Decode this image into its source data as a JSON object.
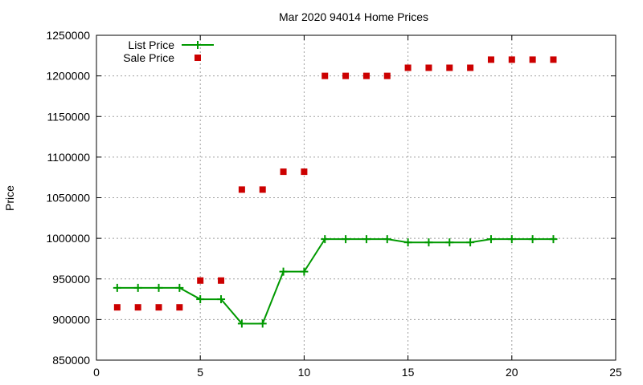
{
  "chart_data": {
    "type": "line",
    "title": "Mar 2020 94014 Home Prices",
    "xlabel": "",
    "ylabel": "Price",
    "xlim": [
      0,
      25
    ],
    "ylim": [
      850000,
      1250000
    ],
    "xticks": [
      0,
      5,
      10,
      15,
      20,
      25
    ],
    "yticks": [
      850000,
      900000,
      950000,
      1000000,
      1050000,
      1100000,
      1150000,
      1200000,
      1250000
    ],
    "grid": true,
    "legend_position": "top-left",
    "series": [
      {
        "name": "List Price",
        "style": "line-points",
        "color": "#009900",
        "x": [
          1,
          2,
          3,
          4,
          5,
          6,
          7,
          8,
          9,
          10,
          11,
          12,
          13,
          14,
          15,
          16,
          17,
          18,
          19,
          20,
          21,
          22
        ],
        "y": [
          939000,
          939000,
          939000,
          939000,
          925000,
          925000,
          895000,
          895000,
          959000,
          959000,
          999000,
          999000,
          999000,
          999000,
          995000,
          995000,
          995000,
          995000,
          999000,
          999000,
          999000,
          999000
        ]
      },
      {
        "name": "Sale Price",
        "style": "points",
        "color": "#cc0000",
        "x": [
          1,
          2,
          3,
          4,
          5,
          6,
          7,
          8,
          9,
          10,
          11,
          12,
          13,
          14,
          15,
          16,
          17,
          18,
          19,
          20,
          21,
          22
        ],
        "y": [
          915000,
          915000,
          915000,
          915000,
          948000,
          948000,
          1060000,
          1060000,
          1082000,
          1082000,
          1200000,
          1200000,
          1200000,
          1200000,
          1210000,
          1210000,
          1210000,
          1210000,
          1220000,
          1220000,
          1220000,
          1220000
        ]
      }
    ]
  }
}
